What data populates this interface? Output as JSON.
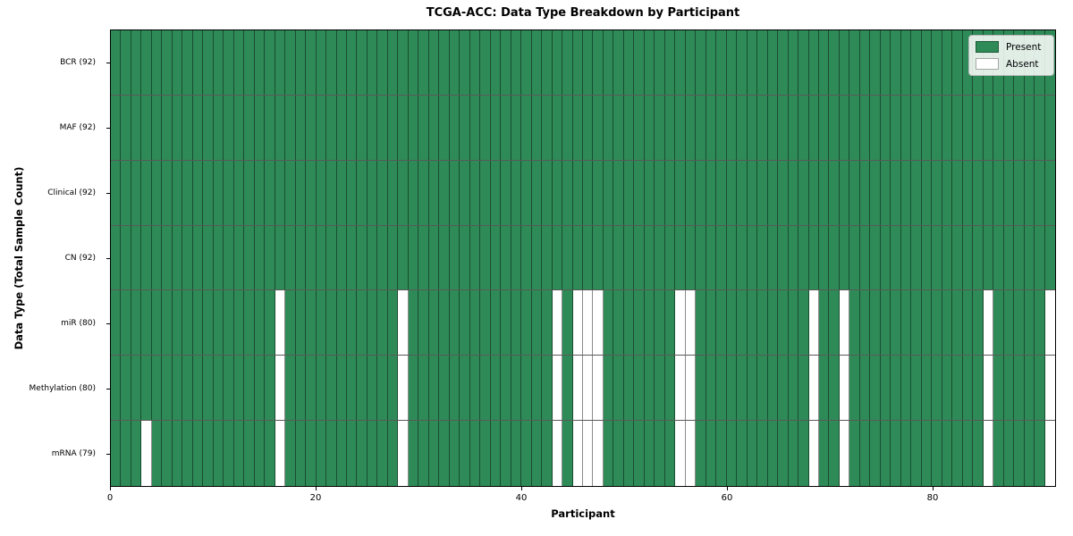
{
  "chart_data": {
    "type": "heatmap",
    "title": "TCGA-ACC: Data Type Breakdown by Participant",
    "xlabel": "Participant",
    "ylabel": "Data Type (Total Sample Count)",
    "n_participants": 92,
    "x_ticks": [
      0,
      20,
      40,
      60,
      80
    ],
    "cell_states": [
      "present",
      "absent"
    ],
    "legend": [
      {
        "label": "Present",
        "color": "#2e8b57"
      },
      {
        "label": "Absent",
        "color": "#ffffff"
      }
    ],
    "colors": {
      "present": "#2e8b57",
      "absent": "#ffffff"
    },
    "rows": [
      {
        "label": "BCR (92)",
        "present_count": 92,
        "absent_participants": []
      },
      {
        "label": "MAF (92)",
        "present_count": 92,
        "absent_participants": []
      },
      {
        "label": "Clinical (92)",
        "present_count": 92,
        "absent_participants": []
      },
      {
        "label": "CN (92)",
        "present_count": 92,
        "absent_participants": []
      },
      {
        "label": "miR (80)",
        "present_count": 80,
        "absent_participants": [
          16,
          28,
          43,
          45,
          46,
          47,
          55,
          56,
          68,
          71,
          85,
          91
        ]
      },
      {
        "label": "Methylation (80)",
        "present_count": 80,
        "absent_participants": [
          16,
          28,
          43,
          45,
          46,
          47,
          55,
          56,
          68,
          71,
          85,
          91
        ]
      },
      {
        "label": "mRNA (79)",
        "present_count": 79,
        "absent_participants": [
          3,
          16,
          28,
          43,
          45,
          46,
          47,
          55,
          56,
          68,
          71,
          85,
          91
        ]
      }
    ]
  }
}
